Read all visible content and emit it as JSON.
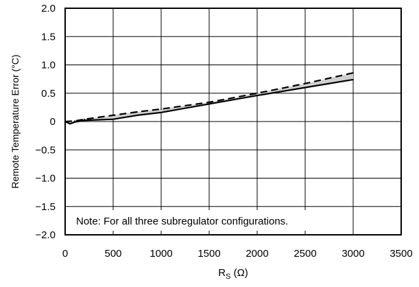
{
  "chart_data": {
    "type": "line",
    "xlabel_main": "R",
    "xlabel_sub": "S",
    "xlabel_unit": " (Ω)",
    "ylabel": "Remote Temperature Error (°C)",
    "xlim": [
      0,
      3500
    ],
    "ylim": [
      -2.0,
      2.0
    ],
    "x_ticks": [
      0,
      500,
      1000,
      1500,
      2000,
      2500,
      3000,
      3500
    ],
    "x_tick_labels": [
      "0",
      "500",
      "1000",
      "1500",
      "2000",
      "2500",
      "3000",
      "3500"
    ],
    "y_ticks": [
      2.0,
      1.5,
      1.0,
      0.5,
      0,
      -0.5,
      -1.0,
      -1.5,
      -2.0
    ],
    "y_tick_labels": [
      "2.0",
      "1.5",
      "1.0",
      "0.5",
      "0",
      "−0.5",
      "−1.0",
      "−1.5",
      "−2.0"
    ],
    "grid": true,
    "annotation": "Note: For all three subregulator configurations.",
    "series": [
      {
        "style": "solid",
        "x": [
          0,
          50,
          100,
          200,
          500,
          750,
          1000,
          1500,
          2000,
          2500,
          3000
        ],
        "values": [
          0.0,
          -0.04,
          -0.01,
          0.02,
          0.04,
          0.11,
          0.16,
          0.31,
          0.46,
          0.6,
          0.74
        ]
      },
      {
        "style": "dashed",
        "x": [
          0,
          100,
          200,
          500,
          750,
          1000,
          1500,
          2000,
          2500,
          3000
        ],
        "values": [
          0.0,
          0.01,
          0.04,
          0.11,
          0.17,
          0.22,
          0.34,
          0.5,
          0.67,
          0.86
        ]
      }
    ],
    "band_color": "#d0d0d0",
    "line_color": "#000000"
  }
}
